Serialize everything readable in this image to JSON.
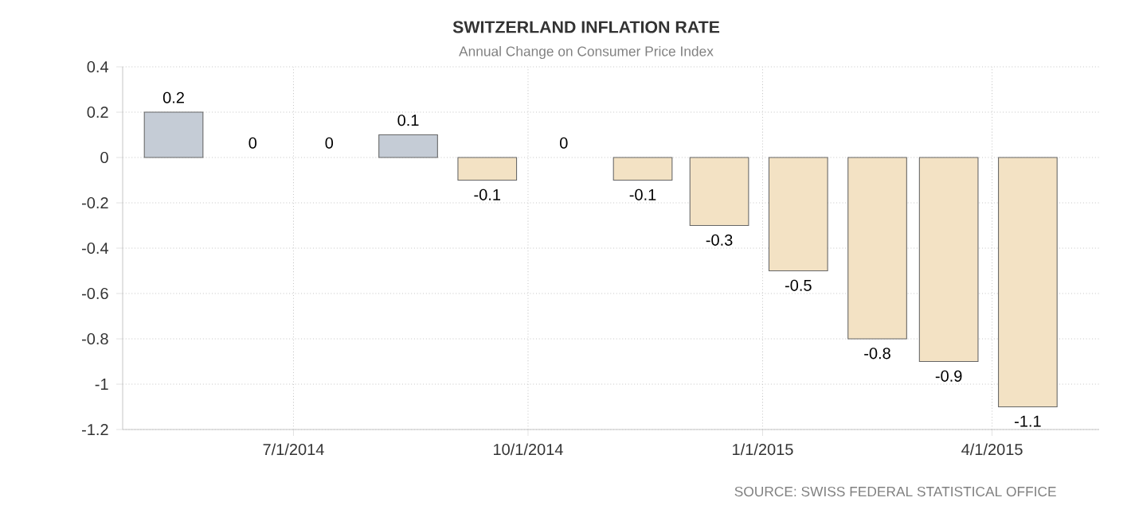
{
  "chart_data": {
    "type": "bar",
    "title": "SWITZERLAND INFLATION RATE",
    "subtitle": "Annual Change on Consumer Price Index",
    "x": [
      "2014-05-15",
      "2014-06-15",
      "2014-07-15",
      "2014-08-15",
      "2014-09-15",
      "2014-10-15",
      "2014-11-15",
      "2014-12-15",
      "2015-01-15",
      "2015-02-15",
      "2015-03-15",
      "2015-04-15"
    ],
    "values": [
      0.2,
      0,
      0,
      0.1,
      -0.1,
      0,
      -0.1,
      -0.3,
      -0.5,
      -0.8,
      -0.9,
      -1.1
    ],
    "colors": [
      "#c5ccd6",
      "#c5ccd6",
      "#c5ccd6",
      "#c5ccd6",
      "#f3e2c4",
      "#f3e2c4",
      "#f3e2c4",
      "#f3e2c4",
      "#f3e2c4",
      "#f3e2c4",
      "#f3e2c4",
      "#f3e2c4"
    ],
    "xlim": [
      "2014-04-25",
      "2015-05-13"
    ],
    "xticks": [
      {
        "value": "2014-07-01",
        "label": "7/1/2014"
      },
      {
        "value": "2014-10-01",
        "label": "10/1/2014"
      },
      {
        "value": "2015-01-01",
        "label": "1/1/2015"
      },
      {
        "value": "2015-04-01",
        "label": "4/1/2015"
      }
    ],
    "ylim": [
      -1.2,
      0.4
    ],
    "yticks": [
      -1.2,
      -1,
      -0.8,
      -0.6,
      -0.4,
      -0.2,
      0,
      0.2,
      0.4
    ],
    "grid": true,
    "data_labels": true,
    "annotations": [
      "SOURCE: SWISS FEDERAL STATISTICAL OFFICE"
    ]
  }
}
